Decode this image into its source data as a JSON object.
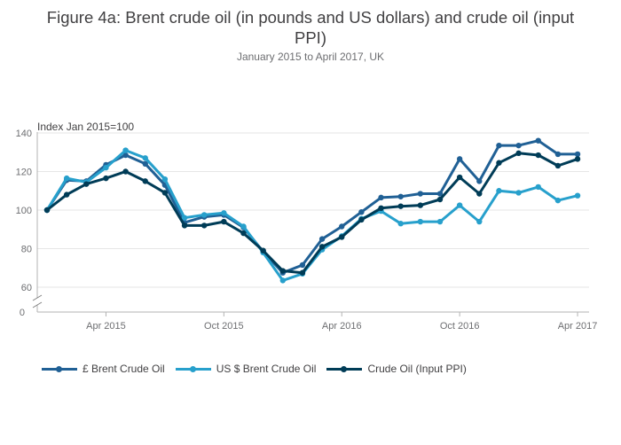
{
  "title_line1": "Figure 4a: Brent crude oil (in pounds and US dollars) and crude oil (input",
  "title_line2": "PPI)",
  "subtitle": "January 2015 to April 2017, UK",
  "chart_data": {
    "type": "line",
    "ylabel": "Index Jan 2015=100",
    "ylim": [
      55,
      145
    ],
    "y_ticks": [
      "140",
      "120",
      "100",
      "80",
      "60",
      "0"
    ],
    "y_axis_break": true,
    "grid": true,
    "legend_position": "bottom",
    "x_tick_labels": [
      "Apr 2015",
      "Oct 2015",
      "Apr 2016",
      "Oct 2016",
      "Apr 2017"
    ],
    "x": [
      "Jan 2015",
      "Feb 2015",
      "Mar 2015",
      "Apr 2015",
      "May 2015",
      "Jun 2015",
      "Jul 2015",
      "Aug 2015",
      "Sep 2015",
      "Oct 2015",
      "Nov 2015",
      "Dec 2015",
      "Jan 2016",
      "Feb 2016",
      "Mar 2016",
      "Apr 2016",
      "May 2016",
      "Jun 2016",
      "Jul 2016",
      "Aug 2016",
      "Sep 2016",
      "Oct 2016",
      "Nov 2016",
      "Dec 2016",
      "Jan 2017",
      "Feb 2017",
      "Mar 2017",
      "Apr 2017"
    ],
    "series": [
      {
        "name": "£ Brent Crude Oil",
        "color": "#206095",
        "values": [
          100.0,
          115.5,
          115.0,
          123.5,
          128.5,
          124.0,
          113.0,
          93.5,
          96.5,
          97.5,
          91.0,
          78.5,
          67.5,
          71.5,
          85.0,
          91.5,
          99.0,
          106.5,
          107.0,
          108.5,
          108.5,
          126.5,
          115.0,
          133.5,
          133.5,
          136.0,
          129.0,
          129.0
        ]
      },
      {
        "name": "US $ Brent Crude Oil",
        "color": "#27a0cc",
        "values": [
          100.0,
          116.5,
          114.5,
          122.0,
          131.0,
          127.0,
          116.0,
          96.0,
          97.5,
          98.5,
          91.5,
          78.0,
          63.5,
          67.0,
          79.5,
          86.5,
          95.5,
          99.5,
          93.0,
          94.0,
          94.0,
          102.5,
          94.0,
          110.0,
          109.0,
          112.0,
          105.0,
          107.5
        ]
      },
      {
        "name": "Crude Oil (Input PPI)",
        "color": "#003c57",
        "values": [
          100.0,
          108.0,
          113.5,
          116.5,
          120.0,
          115.0,
          109.0,
          92.0,
          92.0,
          94.0,
          88.0,
          79.0,
          68.5,
          67.5,
          81.0,
          86.0,
          95.0,
          101.0,
          102.0,
          102.5,
          105.5,
          117.0,
          108.5,
          124.5,
          129.5,
          128.5,
          123.0,
          126.5
        ]
      }
    ]
  }
}
